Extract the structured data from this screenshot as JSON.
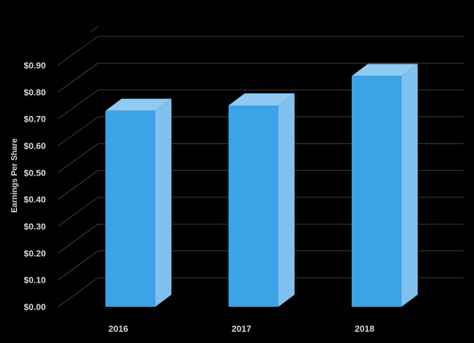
{
  "chart_data": {
    "type": "bar",
    "title": "",
    "xlabel": "",
    "ylabel": "Earnings Per Share",
    "categories": [
      "2016",
      "2017",
      "2018"
    ],
    "values": [
      0.73,
      0.75,
      0.86
    ],
    "ylim": [
      0,
      0.9
    ],
    "yticks": [
      0.0,
      0.1,
      0.2,
      0.3,
      0.4,
      0.5,
      0.6,
      0.7,
      0.8,
      0.9
    ],
    "ytick_labels": [
      "$0.00",
      "$0.10",
      "$0.20",
      "$0.30",
      "$0.40",
      "$0.50",
      "$0.60",
      "$0.70",
      "$0.80",
      "$0.90"
    ],
    "grid": true,
    "legend": "none",
    "colors": {
      "background": "#000000",
      "bar_front": "#3ba3e6",
      "bar_side": "#7fc0ef",
      "bar_top": "#8fcaf3",
      "grid": "#3a3a3a",
      "text": "#d9d9d9"
    }
  }
}
